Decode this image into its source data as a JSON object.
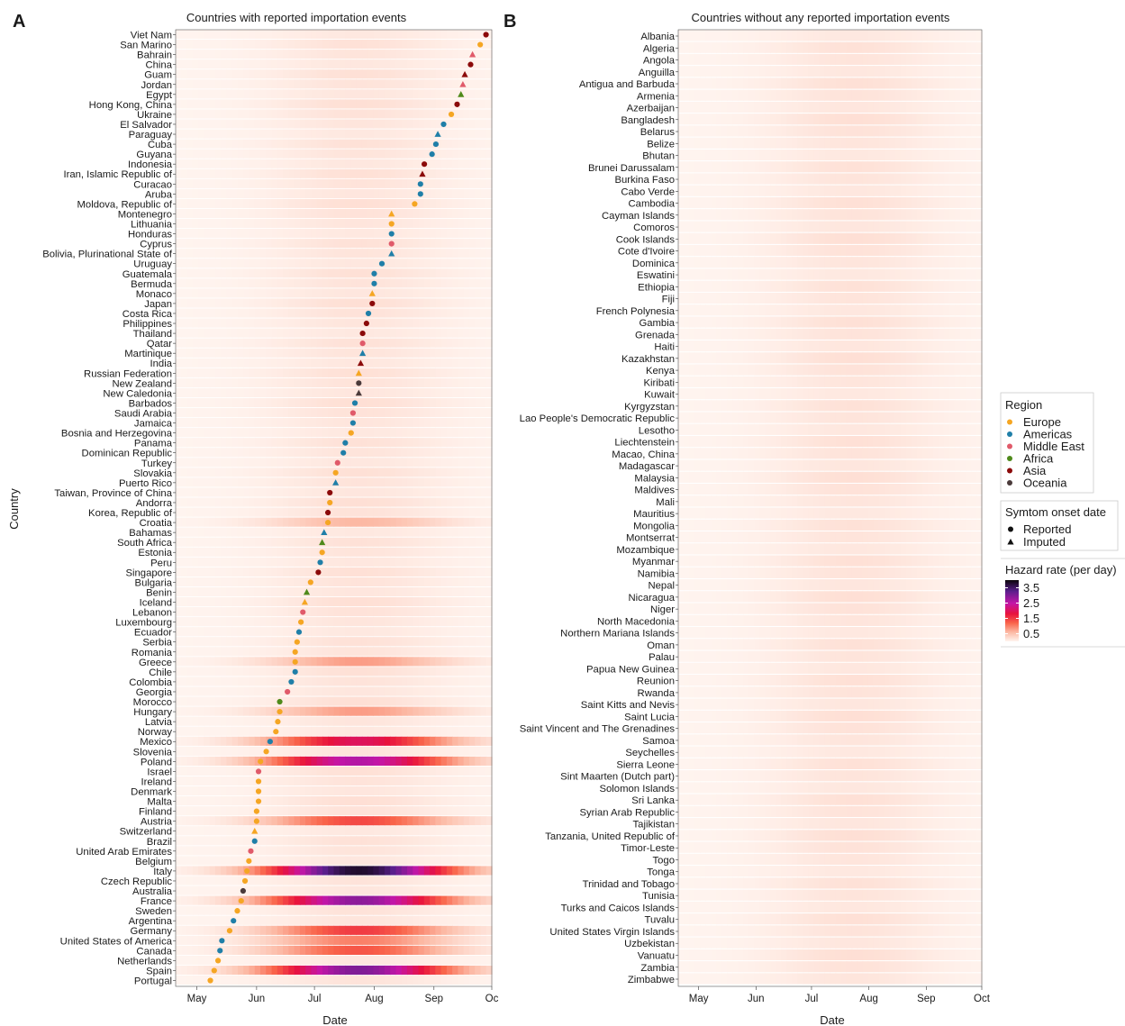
{
  "chart_data": [
    {
      "type": "scatter",
      "panel_label": "A",
      "title": "Countries with reported importation events",
      "xlabel": "Date",
      "ylabel": "Country",
      "x_ticks": [
        "May",
        "Jun",
        "Jul",
        "Aug",
        "Sep",
        "Oc"
      ],
      "xlim": [
        "2020-04-20",
        "2020-10-01"
      ],
      "grid": false,
      "countries": [
        "Viet Nam",
        "San Marino",
        "Bahrain",
        "China",
        "Guam",
        "Jordan",
        "Egypt",
        "Hong Kong, China",
        "Ukraine",
        "El Salvador",
        "Paraguay",
        "Cuba",
        "Guyana",
        "Indonesia",
        "Iran, Islamic Republic of",
        "Curacao",
        "Aruba",
        "Moldova, Republic of",
        "Montenegro",
        "Lithuania",
        "Honduras",
        "Cyprus",
        "Bolivia, Plurinational State of",
        "Uruguay",
        "Guatemala",
        "Bermuda",
        "Monaco",
        "Japan",
        "Costa Rica",
        "Philippines",
        "Thailand",
        "Qatar",
        "Martinique",
        "India",
        "Russian Federation",
        "New Zealand",
        "New Caledonia",
        "Barbados",
        "Saudi Arabia",
        "Jamaica",
        "Bosnia and Herzegovina",
        "Panama",
        "Dominican Republic",
        "Turkey",
        "Slovakia",
        "Puerto Rico",
        "Taiwan, Province of China",
        "Andorra",
        "Korea, Republic of",
        "Croatia",
        "Bahamas",
        "South Africa",
        "Estonia",
        "Peru",
        "Singapore",
        "Bulgaria",
        "Benin",
        "Iceland",
        "Lebanon",
        "Luxembourg",
        "Ecuador",
        "Serbia",
        "Romania",
        "Greece",
        "Chile",
        "Colombia",
        "Georgia",
        "Morocco",
        "Hungary",
        "Latvia",
        "Norway",
        "Mexico",
        "Slovenia",
        "Poland",
        "Israel",
        "Ireland",
        "Denmark",
        "Malta",
        "Finland",
        "Austria",
        "Switzerland",
        "Brazil",
        "United Arab Emirates",
        "Belgium",
        "Italy",
        "Czech Republic",
        "Australia",
        "France",
        "Sweden",
        "Argentina",
        "Germany",
        "United States of America",
        "Canada",
        "Netherlands",
        "Spain",
        "Portugal"
      ],
      "onset_dates": [
        "2020-09-28",
        "2020-09-25",
        "2020-09-21",
        "2020-09-20",
        "2020-09-17",
        "2020-09-16",
        "2020-09-15",
        "2020-09-13",
        "2020-09-10",
        "2020-09-06",
        "2020-09-03",
        "2020-09-02",
        "2020-08-31",
        "2020-08-27",
        "2020-08-26",
        "2020-08-25",
        "2020-08-25",
        "2020-08-22",
        "2020-08-10",
        "2020-08-10",
        "2020-08-10",
        "2020-08-10",
        "2020-08-10",
        "2020-08-05",
        "2020-08-01",
        "2020-08-01",
        "2020-07-31",
        "2020-07-31",
        "2020-07-29",
        "2020-07-28",
        "2020-07-26",
        "2020-07-26",
        "2020-07-26",
        "2020-07-25",
        "2020-07-24",
        "2020-07-24",
        "2020-07-24",
        "2020-07-22",
        "2020-07-21",
        "2020-07-21",
        "2020-07-20",
        "2020-07-17",
        "2020-07-16",
        "2020-07-13",
        "2020-07-12",
        "2020-07-12",
        "2020-07-09",
        "2020-07-09",
        "2020-07-08",
        "2020-07-08",
        "2020-07-06",
        "2020-07-05",
        "2020-07-05",
        "2020-07-04",
        "2020-07-03",
        "2020-06-29",
        "2020-06-27",
        "2020-06-26",
        "2020-06-25",
        "2020-06-24",
        "2020-06-23",
        "2020-06-22",
        "2020-06-21",
        "2020-06-21",
        "2020-06-21",
        "2020-06-19",
        "2020-06-17",
        "2020-06-13",
        "2020-06-13",
        "2020-06-12",
        "2020-06-11",
        "2020-06-08",
        "2020-06-06",
        "2020-06-03",
        "2020-06-02",
        "2020-06-02",
        "2020-06-02",
        "2020-06-02",
        "2020-06-01",
        "2020-06-01",
        "2020-05-31",
        "2020-05-31",
        "2020-05-29",
        "2020-05-28",
        "2020-05-27",
        "2020-05-26",
        "2020-05-25",
        "2020-05-24",
        "2020-05-22",
        "2020-05-20",
        "2020-05-18",
        "2020-05-14",
        "2020-05-13",
        "2020-05-12",
        "2020-05-10",
        "2020-05-08"
      ],
      "region": [
        "Asia",
        "Europe",
        "Middle East",
        "Asia",
        "Asia",
        "Middle East",
        "Africa",
        "Asia",
        "Europe",
        "Americas",
        "Americas",
        "Americas",
        "Americas",
        "Asia",
        "Asia",
        "Americas",
        "Americas",
        "Europe",
        "Europe",
        "Europe",
        "Americas",
        "Middle East",
        "Americas",
        "Americas",
        "Americas",
        "Americas",
        "Europe",
        "Asia",
        "Americas",
        "Asia",
        "Asia",
        "Middle East",
        "Americas",
        "Asia",
        "Europe",
        "Oceania",
        "Oceania",
        "Americas",
        "Middle East",
        "Americas",
        "Europe",
        "Americas",
        "Americas",
        "Middle East",
        "Europe",
        "Americas",
        "Asia",
        "Europe",
        "Asia",
        "Europe",
        "Americas",
        "Africa",
        "Europe",
        "Americas",
        "Asia",
        "Europe",
        "Africa",
        "Europe",
        "Middle East",
        "Europe",
        "Americas",
        "Europe",
        "Europe",
        "Europe",
        "Americas",
        "Americas",
        "Middle East",
        "Africa",
        "Europe",
        "Europe",
        "Europe",
        "Americas",
        "Europe",
        "Europe",
        "Middle East",
        "Europe",
        "Europe",
        "Europe",
        "Europe",
        "Europe",
        "Europe",
        "Americas",
        "Middle East",
        "Europe",
        "Europe",
        "Europe",
        "Oceania",
        "Europe",
        "Europe",
        "Americas",
        "Europe",
        "Americas",
        "Americas",
        "Europe",
        "Europe",
        "Europe"
      ],
      "onset": [
        "Reported",
        "Reported",
        "Imputed",
        "Reported",
        "Imputed",
        "Imputed",
        "Imputed",
        "Reported",
        "Reported",
        "Reported",
        "Imputed",
        "Reported",
        "Reported",
        "Reported",
        "Imputed",
        "Reported",
        "Reported",
        "Reported",
        "Imputed",
        "Reported",
        "Reported",
        "Reported",
        "Imputed",
        "Reported",
        "Reported",
        "Reported",
        "Imputed",
        "Reported",
        "Reported",
        "Reported",
        "Reported",
        "Reported",
        "Imputed",
        "Imputed",
        "Imputed",
        "Reported",
        "Imputed",
        "Reported",
        "Reported",
        "Reported",
        "Reported",
        "Reported",
        "Reported",
        "Reported",
        "Reported",
        "Imputed",
        "Reported",
        "Reported",
        "Reported",
        "Reported",
        "Imputed",
        "Imputed",
        "Reported",
        "Reported",
        "Reported",
        "Reported",
        "Imputed",
        "Imputed",
        "Reported",
        "Reported",
        "Reported",
        "Reported",
        "Reported",
        "Reported",
        "Reported",
        "Reported",
        "Reported",
        "Reported",
        "Reported",
        "Reported",
        "Reported",
        "Reported",
        "Reported",
        "Reported",
        "Reported",
        "Reported",
        "Reported",
        "Reported",
        "Reported",
        "Reported",
        "Imputed",
        "Reported",
        "Reported",
        "Reported",
        "Reported",
        "Reported",
        "Reported",
        "Reported",
        "Reported",
        "Reported",
        "Reported",
        "Reported",
        "Reported",
        "Reported",
        "Reported",
        "Reported"
      ],
      "hazard_peaks": {
        "Italy": 3.8,
        "France": 2.9,
        "Spain": 3.0,
        "Poland": 2.6,
        "Mexico": 2.0,
        "Germany": 1.5,
        "Austria": 1.4,
        "Canada": 1.3,
        "United States of America": 1.0,
        "Greece": 0.8,
        "Hungary": 0.8,
        "Croatia": 0.6
      }
    },
    {
      "type": "heatmap",
      "panel_label": "B",
      "title": "Countries without any reported importation events",
      "xlabel": "Date",
      "x_ticks": [
        "May",
        "Jun",
        "Jul",
        "Aug",
        "Sep",
        "Oct"
      ],
      "xlim": [
        "2020-04-20",
        "2020-10-01"
      ],
      "grid": false,
      "countries": [
        "Albania",
        "Algeria",
        "Angola",
        "Anguilla",
        "Antigua and Barbuda",
        "Armenia",
        "Azerbaijan",
        "Bangladesh",
        "Belarus",
        "Belize",
        "Bhutan",
        "Brunei Darussalam",
        "Burkina Faso",
        "Cabo Verde",
        "Cambodia",
        "Cayman Islands",
        "Comoros",
        "Cook Islands",
        "Cote d'Ivoire",
        "Dominica",
        "Eswatini",
        "Ethiopia",
        "Fiji",
        "French Polynesia",
        "Gambia",
        "Grenada",
        "Haiti",
        "Kazakhstan",
        "Kenya",
        "Kiribati",
        "Kuwait",
        "Kyrgyzstan",
        "Lao People's Democratic Republic",
        "Lesotho",
        "Liechtenstein",
        "Macao, China",
        "Madagascar",
        "Malaysia",
        "Maldives",
        "Mali",
        "Mauritius",
        "Mongolia",
        "Montserrat",
        "Mozambique",
        "Myanmar",
        "Namibia",
        "Nepal",
        "Nicaragua",
        "Niger",
        "North Macedonia",
        "Northern Mariana Islands",
        "Oman",
        "Palau",
        "Papua New Guinea",
        "Reunion",
        "Rwanda",
        "Saint Kitts and Nevis",
        "Saint Lucia",
        "Saint Vincent and The Grenadines",
        "Samoa",
        "Seychelles",
        "Sierra Leone",
        "Sint Maarten (Dutch part)",
        "Solomon Islands",
        "Sri Lanka",
        "Syrian Arab Republic",
        "Tajikistan",
        "Tanzania, United Republic of",
        "Timor-Leste",
        "Togo",
        "Tonga",
        "Trinidad and Tobago",
        "Tunisia",
        "Turks and Caicos Islands",
        "Tuvalu",
        "United States Virgin Islands",
        "Uzbekistan",
        "Vanuatu",
        "Zambia",
        "Zimbabwe"
      ]
    }
  ],
  "legend": {
    "placement": "right",
    "region_title": "Region",
    "regions": [
      {
        "name": "Europe",
        "color": "#f5a623"
      },
      {
        "name": "Americas",
        "color": "#1f7fa8"
      },
      {
        "name": "Middle East",
        "color": "#e05a6a"
      },
      {
        "name": "Africa",
        "color": "#4f8a1b"
      },
      {
        "name": "Asia",
        "color": "#8b0a0a"
      },
      {
        "name": "Oceania",
        "color": "#4a3a3a"
      }
    ],
    "onset_title": "Symtom onset date",
    "onset": [
      {
        "name": "Reported",
        "shape": "circle"
      },
      {
        "name": "Imputed",
        "shape": "triangle"
      }
    ],
    "hazard_title": "Hazard rate (per day)",
    "hazard_ticks": [
      {
        "label": "3.5",
        "value": 3.5
      },
      {
        "label": "2.5",
        "value": 2.5
      },
      {
        "label": "1.5",
        "value": 1.5
      },
      {
        "label": "0.5",
        "value": 0.5
      }
    ],
    "hazard_range": [
      0,
      4
    ]
  }
}
